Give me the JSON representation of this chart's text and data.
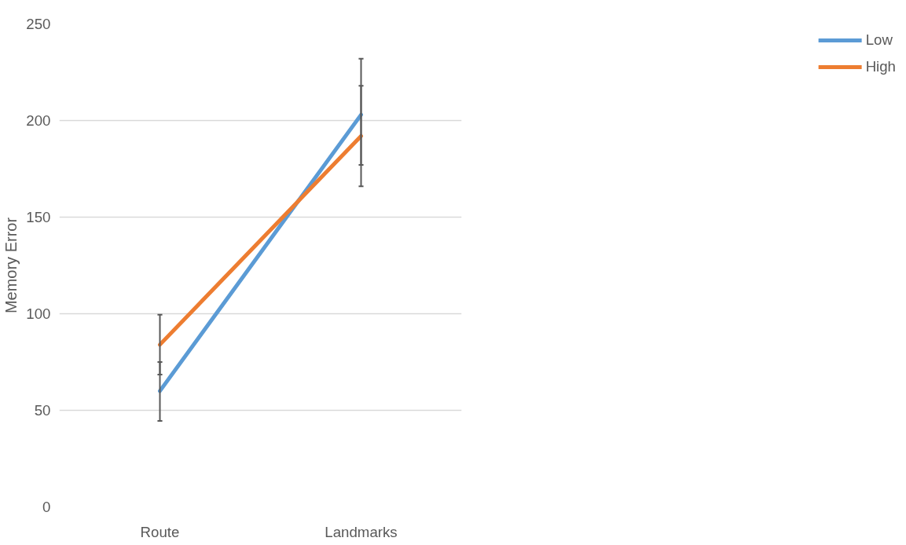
{
  "chart_data": {
    "type": "line",
    "ylabel": "Memory Error",
    "categories": [
      "Route",
      "Landmarks"
    ],
    "series": [
      {
        "name": "Low",
        "color": "#5b9bd5",
        "values": [
          60,
          203
        ],
        "errors": [
          [
            44.5,
            75
          ],
          [
            177,
            232
          ]
        ]
      },
      {
        "name": "High",
        "color": "#ed7d31",
        "values": [
          84,
          192
        ],
        "errors": [
          [
            68.5,
            99.5
          ],
          [
            166,
            218
          ]
        ]
      }
    ],
    "ylim": [
      0,
      250
    ],
    "yticks": [
      0,
      50,
      100,
      150,
      200,
      250
    ],
    "grid": "y",
    "legend": "right",
    "marker": "none",
    "line_style": "solid"
  }
}
